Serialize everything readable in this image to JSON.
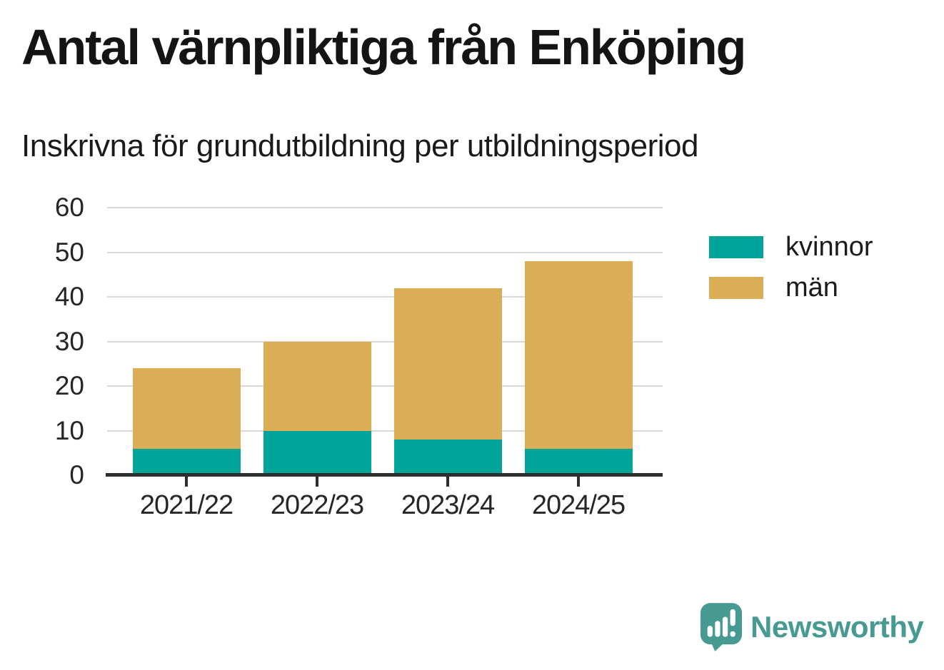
{
  "chart_data": {
    "type": "bar",
    "stacked": true,
    "title": "Antal värnpliktiga från Enköping",
    "subtitle": "Inskrivna för grundutbildning per utbildningsperiod",
    "categories": [
      "2021/22",
      "2022/23",
      "2023/24",
      "2024/25"
    ],
    "series": [
      {
        "name": "kvinnor",
        "color": "#00A499",
        "values": [
          6,
          10,
          8,
          6
        ]
      },
      {
        "name": "män",
        "color": "#DAAD56",
        "values": [
          18,
          20,
          34,
          42
        ]
      }
    ],
    "stack_totals": [
      24,
      30,
      42,
      48
    ],
    "xlabel": "",
    "ylabel": "",
    "ylim": [
      0,
      60
    ],
    "yticks": [
      0,
      10,
      20,
      30,
      40,
      50,
      60
    ],
    "grid": "horizontal",
    "legend_position": "right"
  },
  "branding": {
    "logo_text": "Newsworthy",
    "logo_color": "#479A92"
  },
  "colors": {
    "gridline": "#D9D9D9",
    "axis": "#2D2D2D",
    "text": "#1A1A1A"
  }
}
